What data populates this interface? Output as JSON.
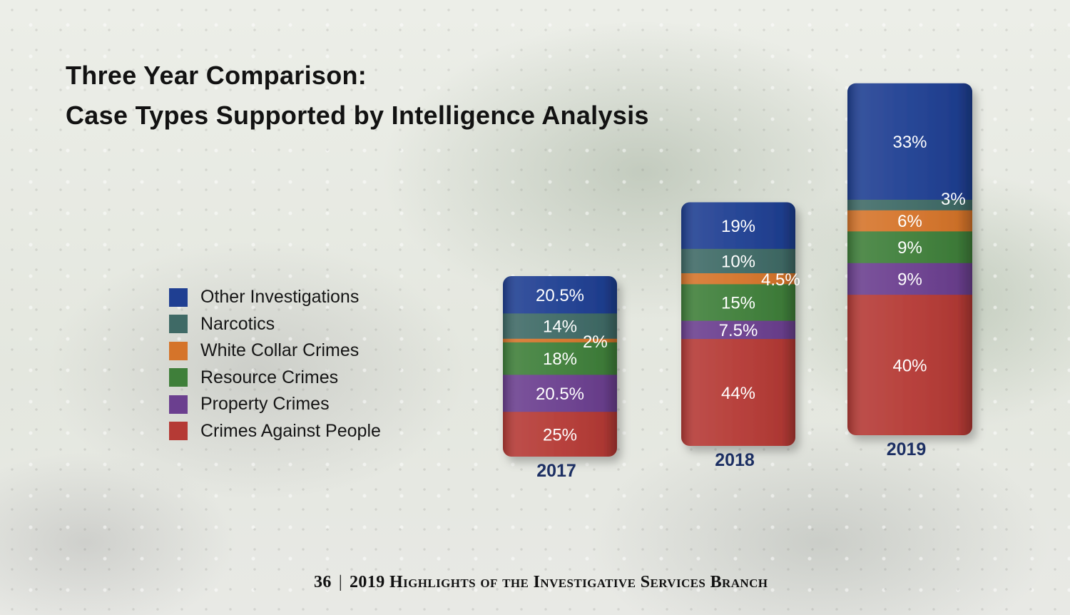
{
  "page": {
    "title_line1": "Three Year Comparison:",
    "title_line2": "Case Types Supported by Intelligence Analysis",
    "footer_page": "36",
    "footer_separator": "|",
    "footer_text": "2019 Highlights of the Investigative Services Branch"
  },
  "chart_data": {
    "type": "bar",
    "stacked": true,
    "title": "Three Year Comparison: Case Types Supported by Intelligence Analysis",
    "xlabel": "",
    "ylabel": "",
    "categories": [
      "2017",
      "2018",
      "2019"
    ],
    "legend_position": "left",
    "grid": false,
    "series": [
      {
        "name": "Crimes Against People",
        "color": "#b53a35",
        "values": [
          25,
          44,
          40
        ],
        "labels": [
          "25%",
          "44%",
          "40%"
        ]
      },
      {
        "name": "Property Crimes",
        "color": "#6b3f8f",
        "values": [
          20.5,
          7.5,
          9
        ],
        "labels": [
          "20.5%",
          "7.5%",
          "9%"
        ]
      },
      {
        "name": "Resource Crimes",
        "color": "#3f7f3a",
        "values": [
          18,
          15,
          9
        ],
        "labels": [
          "18%",
          "15%",
          "9%"
        ]
      },
      {
        "name": "White Collar Crimes",
        "color": "#d5742a",
        "values": [
          2,
          4.5,
          6
        ],
        "labels": [
          "2%",
          "4.5%",
          "6%"
        ]
      },
      {
        "name": "Narcotics",
        "color": "#3f6a66",
        "values": [
          14,
          10,
          3
        ],
        "labels": [
          "14%",
          "10%",
          "3%"
        ]
      },
      {
        "name": "Other Investigations",
        "color": "#1f3f92",
        "values": [
          20.5,
          19,
          33
        ],
        "labels": [
          "20.5%",
          "19%",
          "33%"
        ]
      }
    ],
    "totals_relative_height": [
      1,
      1.35,
      1.95
    ]
  }
}
